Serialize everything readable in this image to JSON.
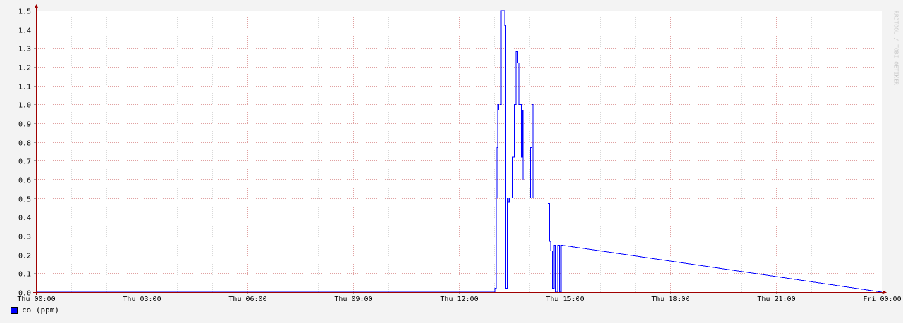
{
  "watermark": "RRDTOOL / TOBI OETIKER",
  "chart_data": {
    "type": "line",
    "xlabel": "",
    "ylabel": "",
    "xlim": [
      0,
      24
    ],
    "ylim": [
      0,
      1.5
    ],
    "y_ticks": [
      "0.0",
      "0.1",
      "0.2",
      "0.3",
      "0.4",
      "0.5",
      "0.6",
      "0.7",
      "0.8",
      "0.9",
      "1.0",
      "1.1",
      "1.2",
      "1.3",
      "1.4",
      "1.5"
    ],
    "x_tick_labels": [
      "Thu 00:00",
      "Thu 03:00",
      "Thu 06:00",
      "Thu 09:00",
      "Thu 12:00",
      "Thu 15:00",
      "Thu 18:00",
      "Thu 21:00",
      "Fri 00:00"
    ],
    "grid": true,
    "legend_position": "bottom-left",
    "series": [
      {
        "name": "co (ppm)",
        "color": "#0000ff",
        "x": [
          0,
          13.02,
          13.02,
          13.06,
          13.06,
          13.08,
          13.08,
          13.1,
          13.1,
          13.13,
          13.13,
          13.17,
          13.17,
          13.2,
          13.2,
          13.3,
          13.3,
          13.33,
          13.33,
          13.37,
          13.37,
          13.4,
          13.4,
          13.43,
          13.43,
          13.53,
          13.53,
          13.57,
          13.57,
          13.62,
          13.62,
          13.67,
          13.67,
          13.7,
          13.7,
          13.77,
          13.77,
          13.8,
          13.8,
          13.82,
          13.82,
          13.85,
          13.85,
          13.87,
          13.87,
          14.03,
          14.03,
          14.07,
          14.07,
          14.1,
          14.1,
          14.53,
          14.53,
          14.57,
          14.57,
          14.6,
          14.6,
          14.65,
          14.65,
          14.7,
          14.7,
          14.75,
          14.75,
          14.8,
          14.8,
          14.85,
          14.85,
          14.9,
          14.9,
          24
        ],
        "y": [
          0,
          0,
          0.02,
          0.02,
          0.5,
          0.5,
          0.77,
          0.77,
          1.0,
          1.0,
          0.97,
          0.97,
          1.0,
          1.0,
          1.5,
          1.5,
          1.42,
          1.42,
          0.02,
          0.02,
          0.5,
          0.5,
          0.48,
          0.48,
          0.5,
          0.5,
          0.72,
          0.72,
          1.0,
          1.0,
          1.28,
          1.28,
          1.22,
          1.22,
          1.0,
          1.0,
          0.72,
          0.72,
          0.97,
          0.97,
          0.6,
          0.6,
          0.5,
          0.5,
          0.5,
          0.5,
          0.77,
          0.77,
          1.0,
          1.0,
          0.5,
          0.5,
          0.47,
          0.47,
          0.27,
          0.27,
          0.22,
          0.22,
          0.02,
          0.02,
          0.25,
          0.25,
          0.0,
          0.0,
          0.25,
          0.25,
          0.0,
          0.0,
          0.25,
          0.0
        ]
      }
    ]
  },
  "legend": {
    "label": "co (ppm)"
  }
}
